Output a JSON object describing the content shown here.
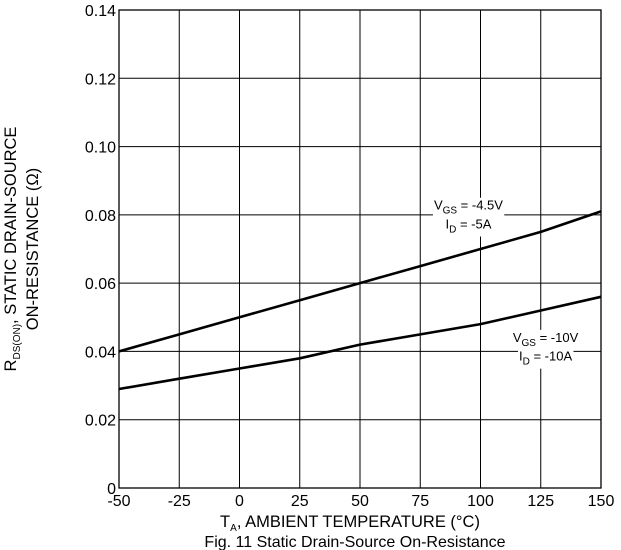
{
  "chart_data": {
    "type": "line",
    "caption": "Fig. 11 Static Drain-Source On-Resistance",
    "xlabel": {
      "main": "T",
      "sub": "A",
      "rest": ", AMBIENT TEMPERATURE (°C)"
    },
    "ylabel": {
      "line1_main": "R",
      "line1_sub": "DS(ON)",
      "line1_rest": ", STATIC DRAIN-SOURCE",
      "line2": "ON-RESISTANCE (Ω)"
    },
    "xlim": [
      -50,
      150
    ],
    "ylim": [
      0,
      0.14
    ],
    "xticks": [
      -50,
      -25,
      0,
      25,
      50,
      75,
      100,
      125,
      150
    ],
    "yticks": [
      0,
      0.02,
      0.04,
      0.06,
      0.08,
      0.1,
      0.12,
      0.14
    ],
    "xtick_labels": [
      "-50",
      "-25",
      "0",
      "25",
      "50",
      "75",
      "100",
      "125",
      "150"
    ],
    "ytick_labels": [
      "0",
      "0.02",
      "0.04",
      "0.06",
      "0.08",
      "0.10",
      "0.12",
      "0.14"
    ],
    "grid": true,
    "series": [
      {
        "annotation": [
          {
            "main": "V",
            "sub": "GS",
            "rest": " = -4.5V"
          },
          {
            "main": "I",
            "sub": "D",
            "rest": " = -5A"
          }
        ],
        "x": [
          -50,
          -25,
          0,
          25,
          50,
          75,
          100,
          125,
          150
        ],
        "y": [
          0.04,
          0.045,
          0.05,
          0.055,
          0.06,
          0.065,
          0.07,
          0.075,
          0.081
        ]
      },
      {
        "annotation": [
          {
            "main": "V",
            "sub": "GS",
            "rest": " = -10V"
          },
          {
            "main": "I",
            "sub": "D",
            "rest": " = -10A"
          }
        ],
        "x": [
          -50,
          -25,
          0,
          25,
          50,
          75,
          100,
          125,
          150
        ],
        "y": [
          0.029,
          0.032,
          0.035,
          0.038,
          0.042,
          0.045,
          0.048,
          0.052,
          0.056
        ]
      }
    ]
  }
}
